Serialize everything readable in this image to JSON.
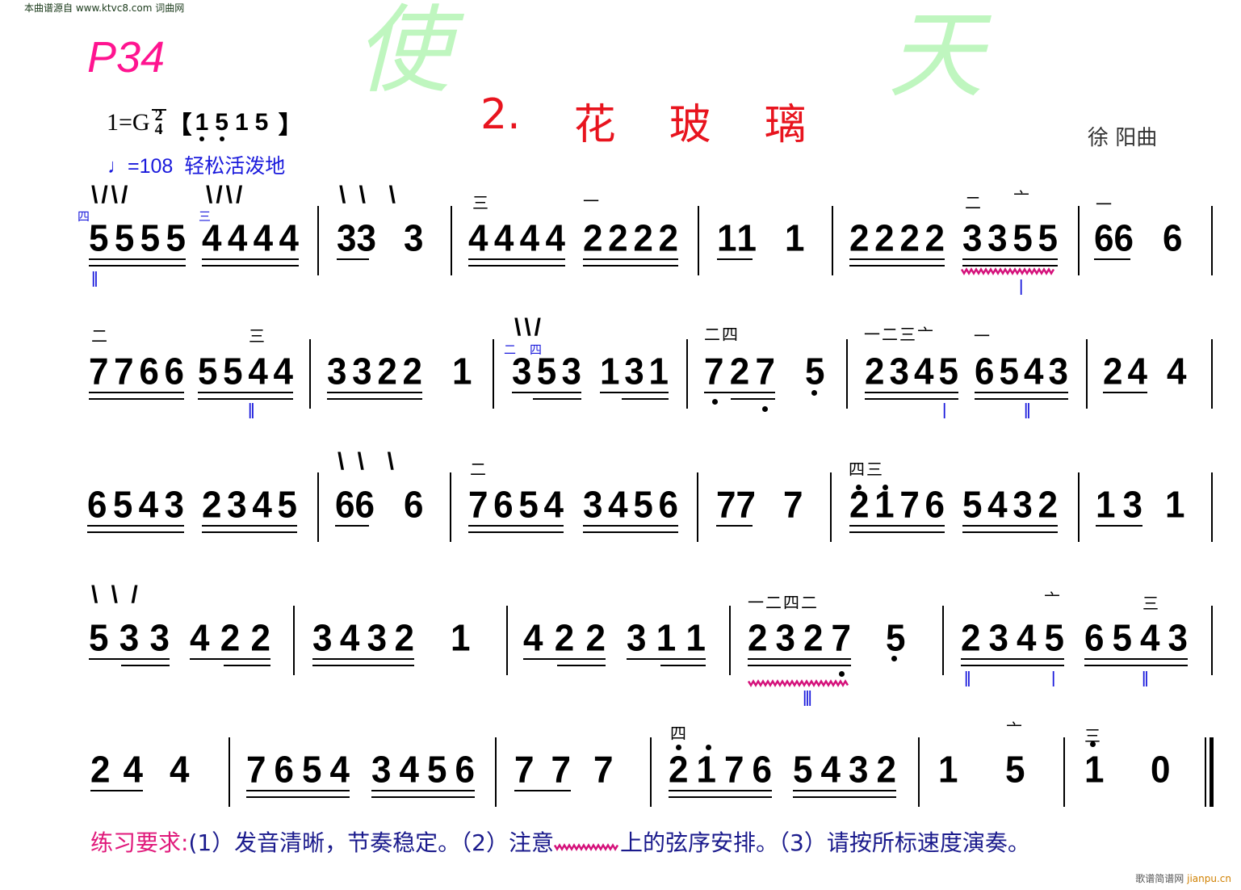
{
  "source_watermark": "本曲谱源自 www.ktvc8.com 词曲网",
  "page_label": "P34",
  "header": {
    "key": "1=G",
    "time_top": "2",
    "time_bottom": "4",
    "tuning_open": "【",
    "tuning_notes": [
      "1",
      "5",
      "1",
      "5"
    ],
    "tuning_close": " 】"
  },
  "tempo": {
    "note_icon": "quarter-note",
    "value": "=108",
    "expression": "轻松活泼地"
  },
  "title": {
    "number": "2.",
    "chars": [
      "花",
      "玻",
      "璃"
    ]
  },
  "composer": "徐 阳曲",
  "rows": [
    {
      "groups": [
        "5555",
        "4444",
        "33",
        "3",
        "4444",
        "2222",
        "11",
        "1",
        "2222",
        "3355",
        "66",
        "6"
      ],
      "marks": [
        "\\/\\/",
        "\\/\\/",
        "\\ \\  \\",
        "三",
        "一",
        "二",
        "亠",
        "一",
        "四",
        "三",
        "II",
        "I"
      ]
    },
    {
      "groups": [
        "7766",
        "5544",
        "3322",
        "1",
        "353",
        "131",
        "727",
        "5",
        "2345",
        "6543",
        "24",
        "4"
      ],
      "marks": [
        "二",
        "三",
        "II",
        "\\\\/",
        "二",
        "四",
        "二四",
        "一二三亠",
        "一",
        "I",
        "II"
      ]
    },
    {
      "groups": [
        "6543",
        "2345",
        "66",
        "6",
        "7654",
        "3456",
        "77",
        "7",
        "2176",
        "5432",
        "13",
        "1"
      ],
      "marks": [
        "\\ \\  \\",
        "二",
        "四三"
      ]
    },
    {
      "groups": [
        "533",
        "422",
        "3432",
        "1",
        "422",
        "311",
        "2327",
        "5",
        "2345",
        "6543"
      ],
      "marks": [
        "\\ \\ /",
        "一二四二",
        "III",
        "亠",
        "三",
        "II",
        "I",
        "II"
      ]
    },
    {
      "groups": [
        "24",
        "4",
        "7654",
        "3456",
        "77",
        "7",
        "2176",
        "5432",
        "1",
        "5",
        "1",
        "0"
      ],
      "marks": [
        "四",
        "亠",
        "三"
      ]
    }
  ],
  "watermark_chars": [
    "天",
    "使"
  ],
  "instructions": {
    "label": "练习要求:",
    "part1": "(1）发音清晰，节奏稳定。（2）注意",
    "part2": "上的弦序安排。（3）请按所标速度演奏。"
  },
  "site_mark": {
    "name": "歌谱简谱网 ",
    "domain": "jianpu.cn"
  },
  "colors": {
    "page_label": "#ff1490",
    "title": "#e8141e",
    "tempo": "#1a1adc",
    "vibrato": "#d4107a",
    "watermark": "#b4f5b4"
  }
}
